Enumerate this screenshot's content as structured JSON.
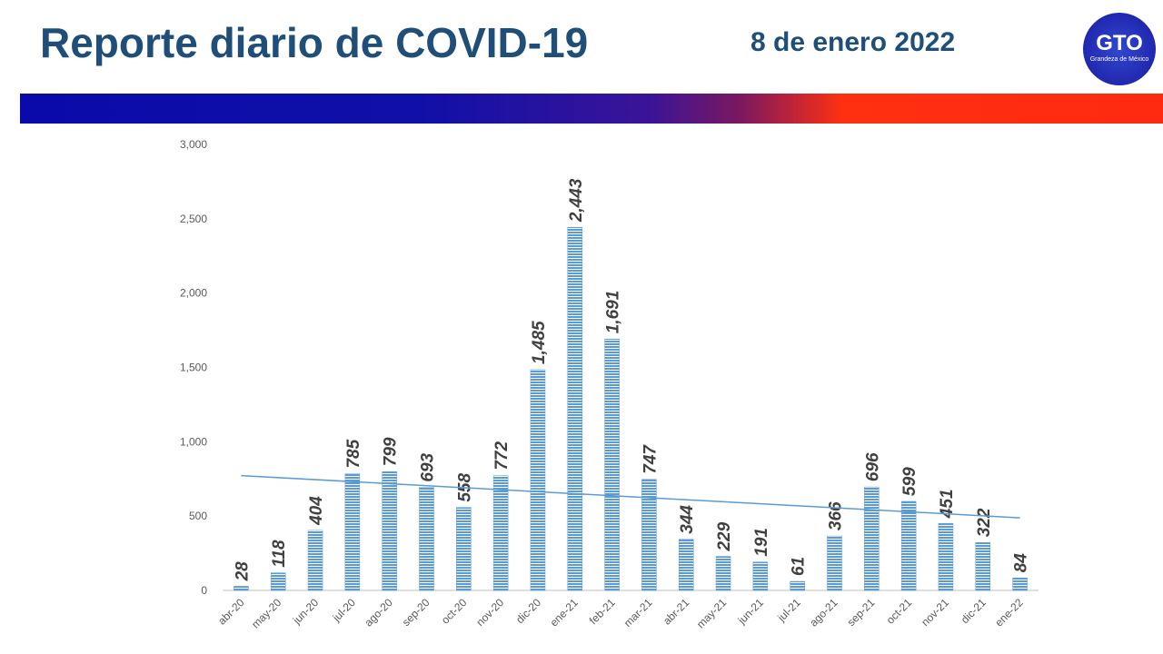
{
  "header": {
    "title": "Reporte diario de COVID-19",
    "date": "8 de enero 2022",
    "logo": {
      "text": "GTO",
      "subtitle": "Grandeza de México"
    }
  },
  "chart_data": {
    "type": "bar",
    "categories": [
      "abr-20",
      "may-20",
      "jun-20",
      "jul-20",
      "ago-20",
      "sep-20",
      "oct-20",
      "nov-20",
      "dic-20",
      "ene-21",
      "feb-21",
      "mar-21",
      "abr-21",
      "may-21",
      "jun-21",
      "jul-21",
      "ago-21",
      "sep-21",
      "oct-21",
      "nov-21",
      "dic-21",
      "ene-22"
    ],
    "values": [
      28,
      118,
      404,
      785,
      799,
      693,
      558,
      772,
      1485,
      2443,
      1691,
      747,
      344,
      229,
      191,
      61,
      366,
      696,
      599,
      451,
      322,
      84
    ],
    "value_labels": [
      "28",
      "118",
      "404",
      "785",
      "799",
      "693",
      "558",
      "772",
      "1,485",
      "2,443",
      "1,691",
      "747",
      "344",
      "229",
      "191",
      "61",
      "366",
      "696",
      "599",
      "451",
      "322",
      "84"
    ],
    "color": "#5b9bd5",
    "ylim": [
      0,
      3000
    ],
    "yticks": [
      0,
      500,
      {
        "value": 1000,
        "label": "1,000"
      },
      {
        "value": 1500,
        "label": "1,500"
      },
      {
        "value": 2000,
        "label": "2,000"
      },
      {
        "value": 2500,
        "label": "2,500"
      },
      {
        "value": 3000,
        "label": "3,000"
      }
    ],
    "trendline": true,
    "trendline_color": "#5b9bd5",
    "grid": false
  }
}
